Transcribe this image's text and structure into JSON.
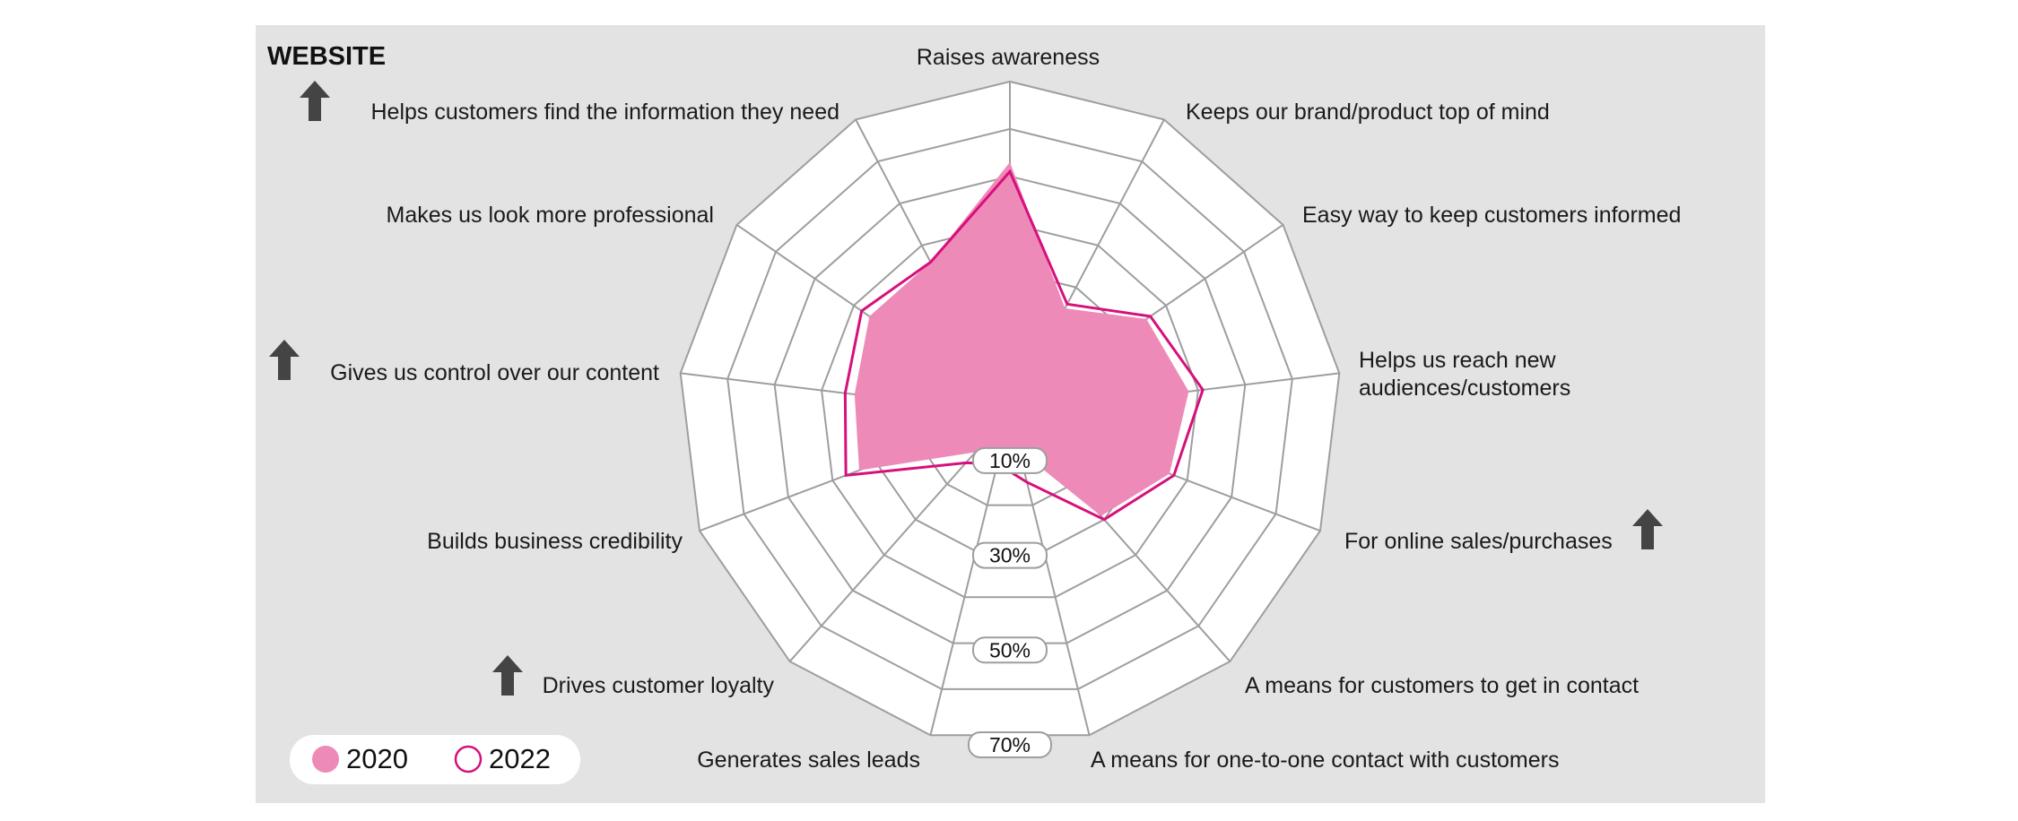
{
  "chart_data": {
    "type": "radar",
    "title": "WEBSITE",
    "categories": [
      "Raises awareness",
      "Keeps our brand/product top of mind",
      "Easy way to keep customers informed",
      "Helps us reach new audiences/customers",
      "For online sales/purchases",
      "A means for customers to get in contact",
      "A means for one-to-one contact with customers",
      "Generates sales leads",
      "Drives customer loyalty",
      "Builds business credibility",
      "Gives us control over our content",
      "Makes us look more professional",
      "Helps customers find the information they need"
    ],
    "radial_ticks": [
      "10%",
      "30%",
      "50%",
      "70%"
    ],
    "rmax": 70,
    "rings": 7,
    "series": [
      {
        "name": "2020",
        "style": "filled",
        "color": "#ee8ab8",
        "values": [
          53,
          25,
          35,
          38,
          36,
          29,
          8,
          13,
          11,
          34,
          33,
          36,
          36
        ]
      },
      {
        "name": "2022",
        "style": "outline",
        "color": "#d6107c",
        "values": [
          51,
          26,
          36,
          41,
          37,
          30,
          15,
          11,
          14,
          37,
          35,
          38,
          36
        ]
      }
    ],
    "increase_markers": [
      "For online sales/purchases",
      "Drives customer loyalty",
      "Gives us control over our content",
      "Helps customers find the information they need"
    ],
    "legend_position": "bottom-left",
    "colors": {
      "panel_bg": "#e3e3e3",
      "grid": "#9e9e9e",
      "arrow": "#444444"
    }
  }
}
